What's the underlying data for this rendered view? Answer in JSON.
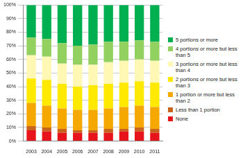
{
  "chart_data": {
    "type": "bar",
    "stacked": true,
    "grid": true,
    "legend": "right",
    "categories": [
      "2003",
      "2004",
      "2005",
      "2006",
      "2007",
      "2008",
      "2009",
      "2010",
      "2011"
    ],
    "series": [
      {
        "name": "None",
        "color": "#e8141c",
        "values": [
          8,
          7,
          6,
          6,
          6,
          6,
          7,
          7,
          6
        ]
      },
      {
        "name": "Less than 1 portion",
        "color": "#c8641e",
        "values": [
          3,
          3,
          3,
          2,
          2,
          3,
          2,
          3,
          3
        ]
      },
      {
        "name": "1 portion or more but less than 2",
        "color": "#f5a800",
        "values": [
          17,
          16,
          15,
          15,
          15,
          15,
          16,
          16,
          16
        ]
      },
      {
        "name": "2 portions or more but less than 3",
        "color": "#ffe900",
        "values": [
          18,
          19,
          18,
          17,
          18,
          18,
          18,
          18,
          18
        ]
      },
      {
        "name": "3 portions or more but less than 4",
        "color": "#fff7b4",
        "values": [
          17,
          17,
          15,
          16,
          15,
          16,
          16,
          16,
          16
        ]
      },
      {
        "name": "4 portions or more but less than 5",
        "color": "#92d060",
        "values": [
          13,
          13,
          15,
          14,
          15,
          15,
          14,
          14,
          14
        ]
      },
      {
        "name": "5 portions or more",
        "color": "#00b050",
        "values": [
          24,
          25,
          28,
          30,
          29,
          27,
          27,
          26,
          27
        ]
      }
    ],
    "ylim": [
      0,
      100
    ],
    "yticks": [
      {
        "value": 0,
        "label": "0%"
      },
      {
        "value": 10,
        "label": "10%"
      },
      {
        "value": 20,
        "label": "20%"
      },
      {
        "value": 30,
        "label": "30%"
      },
      {
        "value": 40,
        "label": "40%"
      },
      {
        "value": 50,
        "label": "50%"
      },
      {
        "value": 60,
        "label": "60%"
      },
      {
        "value": 70,
        "label": "70%"
      },
      {
        "value": 80,
        "label": "80%"
      },
      {
        "value": 90,
        "label": "90%"
      },
      {
        "value": 100,
        "label": "100%"
      }
    ]
  }
}
